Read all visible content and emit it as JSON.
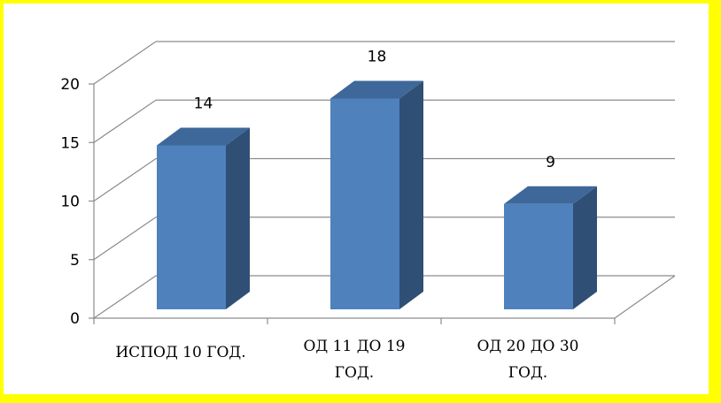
{
  "chart_data": {
    "type": "bar",
    "categories": [
      [
        "ИСПОД 10 ГОД."
      ],
      [
        "ОД 11 ДО 19",
        "ГОД."
      ],
      [
        "ОД 20 ДО 30",
        "ГОД."
      ]
    ],
    "values": [
      14,
      18,
      9
    ],
    "data_labels": [
      "14",
      "18",
      "9"
    ],
    "y_ticks": [
      "0",
      "5",
      "10",
      "15",
      "20"
    ],
    "ylim": [
      0,
      20
    ],
    "grid": true,
    "legend": "none",
    "colors": {
      "bar_front": "#4f81bd",
      "bar_side": "#2f4f75",
      "bar_top": "#3d6899",
      "grid": "#8c8c8c",
      "frame_border": "#ffff00",
      "text": "#000000"
    }
  }
}
